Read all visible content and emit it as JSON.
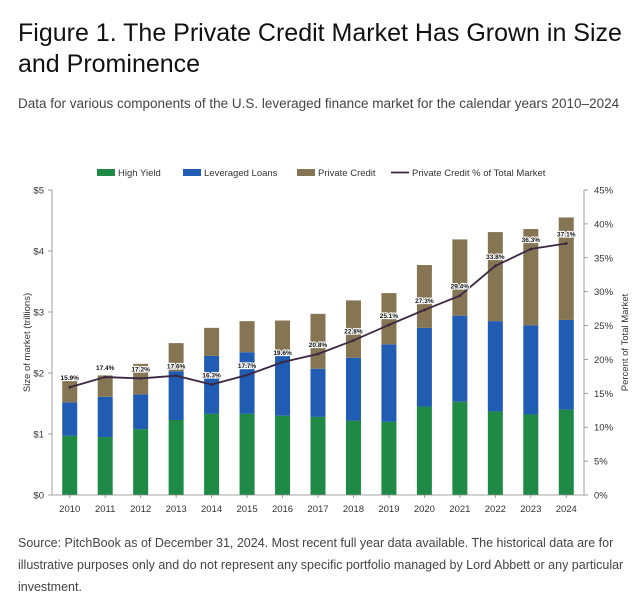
{
  "figure": {
    "title": "Figure 1. The Private Credit Market Has Grown in Size and Prominence",
    "subtitle": "Data for various components of the U.S. leveraged finance market for the calendar years 2010–2024",
    "source": "Source: PitchBook as of December 31, 2024. Most recent full year data available. The historical data are for illustrative purposes only and do not represent any specific portfolio managed by Lord Abbett or any particular investment."
  },
  "chart_data": {
    "type": "bar",
    "stacked": true,
    "categories": [
      "2010",
      "2011",
      "2012",
      "2013",
      "2014",
      "2015",
      "2016",
      "2017",
      "2018",
      "2019",
      "2020",
      "2021",
      "2022",
      "2023",
      "2024"
    ],
    "series": [
      {
        "name": "High Yield",
        "color": "#1e8a45",
        "values": [
          0.97,
          0.95,
          1.08,
          1.23,
          1.33,
          1.33,
          1.3,
          1.28,
          1.22,
          1.2,
          1.45,
          1.53,
          1.37,
          1.32,
          1.4
        ]
      },
      {
        "name": "Leveraged Loans",
        "color": "#1f5cb2",
        "values": [
          0.55,
          0.66,
          0.57,
          0.8,
          0.95,
          1.01,
          0.98,
          0.79,
          1.03,
          1.27,
          1.29,
          1.41,
          1.48,
          1.46,
          1.47
        ]
      },
      {
        "name": "Private Credit",
        "color": "#857552",
        "values": [
          0.43,
          0.35,
          0.5,
          0.46,
          0.46,
          0.51,
          0.58,
          0.9,
          0.94,
          0.84,
          1.03,
          1.25,
          1.46,
          1.58,
          1.68
        ]
      }
    ],
    "line_series": {
      "name": "Private Credit % of Total Market",
      "color": "#3b2742",
      "axis": "right",
      "values": [
        15.9,
        17.4,
        17.2,
        17.6,
        16.3,
        17.7,
        19.6,
        20.8,
        22.8,
        25.1,
        27.3,
        29.4,
        33.8,
        36.3,
        37.1
      ],
      "labels": [
        "15.9%",
        "17.4%",
        "17.2%",
        "17.6%",
        "16.3%",
        "17.7%",
        "19.6%",
        "20.8%",
        "22.8%",
        "25.1%",
        "27.3%",
        "29.4%",
        "33.8%",
        "36.3%",
        "37.1%"
      ]
    },
    "ylabel": "Size of market (trillions)",
    "y2label": "Percent of Total Market",
    "ylim": [
      0,
      5
    ],
    "y2lim": [
      0,
      45
    ],
    "yticks": [
      "$0",
      "$1",
      "$2",
      "$3",
      "$4",
      "$5"
    ],
    "y2ticks": [
      "0%",
      "5%",
      "10%",
      "15%",
      "20%",
      "25%",
      "30%",
      "35%",
      "40%",
      "45%"
    ],
    "legend": [
      "High Yield",
      "Leveraged Loans",
      "Private Credit",
      "Private Credit % of Total Market"
    ],
    "legend_position": "top",
    "grid": false
  }
}
